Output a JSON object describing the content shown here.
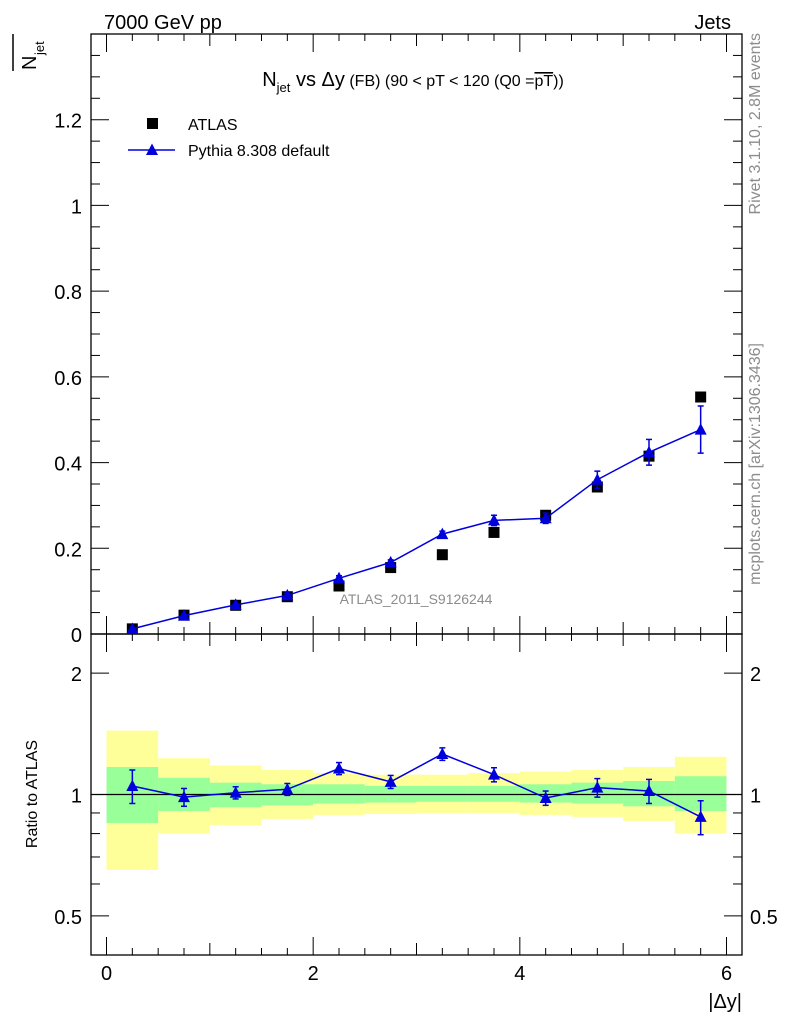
{
  "header": {
    "energy_label": "7000 GeV pp",
    "category_label": "Jets"
  },
  "side_labels": {
    "rivet": "Rivet 3.1.10,  2.8M events",
    "mcplots": "mcplots.cern.ch [arXiv:1306.3436]"
  },
  "chart_data": {
    "type": "scatter",
    "title": {
      "main": "N",
      "sub": "jet",
      "vs": " vs ",
      "delta": "Δy",
      "fb": " (FB)",
      "range": " (90 < pT < 120 (Q0 =",
      "pt": "pT",
      "close": "))"
    },
    "analysis_label": "ATLAS_2011_S9126244",
    "ylabel": {
      "main": "N",
      "sub": "jet"
    },
    "xlabel": "|Δy|",
    "xlim": [
      -0.15,
      6.15
    ],
    "ylim": [
      0,
      1.4
    ],
    "yticks": [
      {
        "v": 0,
        "label": "0"
      },
      {
        "v": 0.2,
        "label": "0.2"
      },
      {
        "v": 0.4,
        "label": "0.4"
      },
      {
        "v": 0.6,
        "label": "0.6"
      },
      {
        "v": 0.8,
        "label": "0.8"
      },
      {
        "v": 1.0,
        "label": "1"
      },
      {
        "v": 1.2,
        "label": "1.2"
      }
    ],
    "xticks": [
      {
        "v": 0,
        "label": "0"
      },
      {
        "v": 2,
        "label": "2"
      },
      {
        "v": 4,
        "label": "4"
      },
      {
        "v": 6,
        "label": "6"
      }
    ],
    "x": [
      0.25,
      0.75,
      1.25,
      1.75,
      2.25,
      2.75,
      3.25,
      3.75,
      4.25,
      4.75,
      5.25,
      5.75
    ],
    "legend": {
      "position": "top-left",
      "items": [
        "ATLAS",
        "Pythia 8.308 default"
      ]
    },
    "series": [
      {
        "name": "ATLAS",
        "marker": "square",
        "color": "#000000",
        "values": [
          0.012,
          0.044,
          0.067,
          0.087,
          0.112,
          0.155,
          0.185,
          0.237,
          0.277,
          0.343,
          0.415,
          0.553
        ]
      },
      {
        "name": "Pythia 8.308 default",
        "marker": "triangle",
        "color": "#0000dd",
        "values": [
          0.012,
          0.043,
          0.068,
          0.09,
          0.13,
          0.167,
          0.233,
          0.265,
          0.27,
          0.36,
          0.424,
          0.477
        ],
        "errors": [
          0.002,
          0.003,
          0.004,
          0.005,
          0.006,
          0.006,
          0.007,
          0.012,
          0.012,
          0.02,
          0.03,
          0.055
        ]
      }
    ],
    "ratio": {
      "ylabel": "Ratio to ATLAS",
      "scale": "log",
      "ylim": [
        0.4,
        2.5
      ],
      "yticks": [
        {
          "v": 0.5,
          "label": "0.5"
        },
        {
          "v": 1,
          "label": "1"
        },
        {
          "v": 2,
          "label": "2"
        }
      ],
      "bins": [
        [
          0,
          0.5
        ],
        [
          0.5,
          1
        ],
        [
          1,
          1.5
        ],
        [
          1.5,
          2
        ],
        [
          2,
          2.5
        ],
        [
          2.5,
          3
        ],
        [
          3,
          3.5
        ],
        [
          3.5,
          4
        ],
        [
          4,
          4.5
        ],
        [
          4.5,
          5
        ],
        [
          5,
          5.5
        ],
        [
          5.5,
          6
        ]
      ],
      "band_green": [
        [
          0.85,
          1.17
        ],
        [
          0.91,
          1.1
        ],
        [
          0.93,
          1.07
        ],
        [
          0.94,
          1.06
        ],
        [
          0.95,
          1.06
        ],
        [
          0.955,
          1.05
        ],
        [
          0.96,
          1.05
        ],
        [
          0.96,
          1.05
        ],
        [
          0.955,
          1.06
        ],
        [
          0.95,
          1.07
        ],
        [
          0.935,
          1.08
        ],
        [
          0.91,
          1.11
        ]
      ],
      "band_yellow": [
        [
          0.65,
          1.44
        ],
        [
          0.8,
          1.23
        ],
        [
          0.84,
          1.18
        ],
        [
          0.87,
          1.15
        ],
        [
          0.89,
          1.13
        ],
        [
          0.895,
          1.12
        ],
        [
          0.9,
          1.12
        ],
        [
          0.9,
          1.13
        ],
        [
          0.89,
          1.14
        ],
        [
          0.88,
          1.15
        ],
        [
          0.86,
          1.17
        ],
        [
          0.8,
          1.24
        ]
      ],
      "values": [
        1.05,
        0.985,
        1.01,
        1.03,
        1.16,
        1.075,
        1.26,
        1.12,
        0.98,
        1.04,
        1.02,
        0.88
      ],
      "errors": [
        0.1,
        0.05,
        0.035,
        0.035,
        0.04,
        0.04,
        0.045,
        0.045,
        0.04,
        0.055,
        0.07,
        0.085
      ]
    }
  }
}
